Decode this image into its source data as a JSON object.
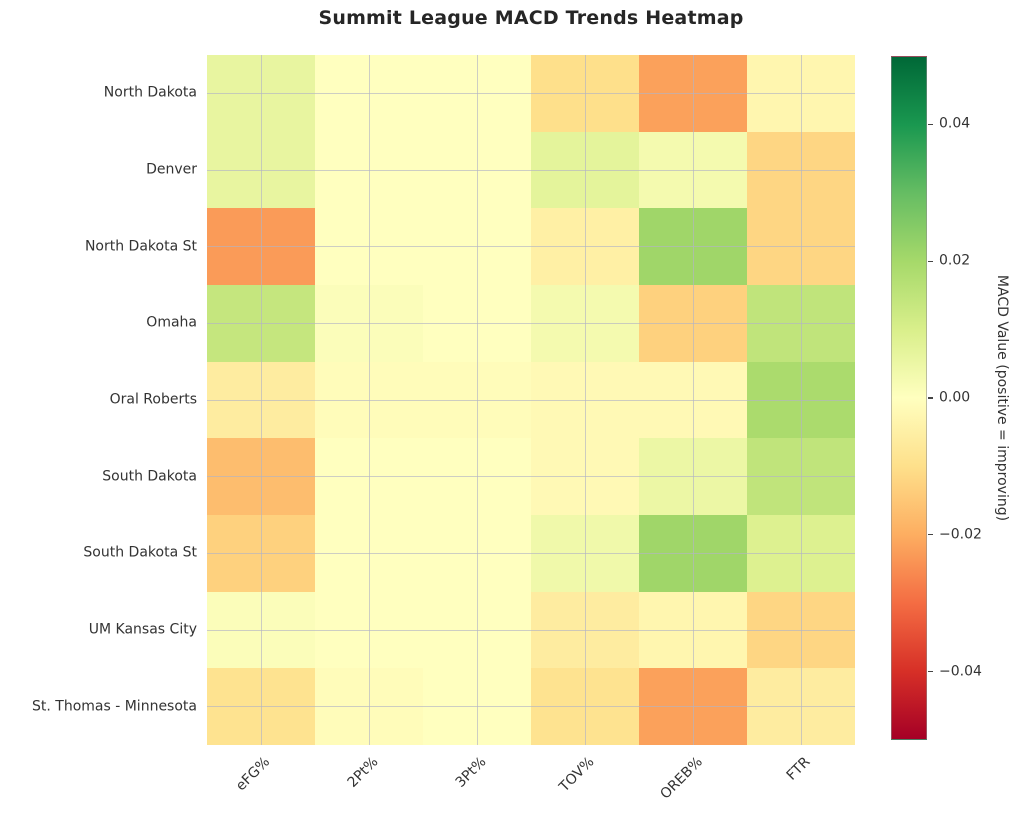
{
  "title": "Summit League MACD Trends Heatmap",
  "chart_data": {
    "type": "heatmap",
    "title": "Summit League MACD Trends Heatmap",
    "rows": [
      "North Dakota",
      "Denver",
      "North Dakota St",
      "Omaha",
      "Oral Roberts",
      "South Dakota",
      "South Dakota St",
      "UM Kansas City",
      "St. Thomas - Minnesota"
    ],
    "columns": [
      "eFG%",
      "2Pt%",
      "3Pt%",
      "TOV%",
      "OREB%",
      "FTR"
    ],
    "values": [
      [
        0.006,
        0.0,
        0.0,
        -0.01,
        -0.022,
        -0.003
      ],
      [
        0.006,
        0.0,
        0.0,
        0.007,
        0.003,
        -0.012
      ],
      [
        -0.023,
        0.0,
        0.0,
        -0.005,
        0.021,
        -0.012
      ],
      [
        0.014,
        0.001,
        0.0,
        0.003,
        -0.013,
        0.015
      ],
      [
        -0.006,
        -0.001,
        -0.001,
        -0.002,
        -0.002,
        0.019
      ],
      [
        -0.017,
        0.0,
        0.0,
        -0.002,
        0.005,
        0.015
      ],
      [
        -0.013,
        0.0,
        0.0,
        0.004,
        0.021,
        0.009
      ],
      [
        0.001,
        0.0,
        0.0,
        -0.006,
        -0.003,
        -0.012
      ],
      [
        -0.009,
        -0.001,
        0.0,
        -0.009,
        -0.022,
        -0.006
      ]
    ],
    "colormap": "RdYlGn",
    "vmin": -0.05,
    "vmax": 0.05,
    "grid": true,
    "colorbar": {
      "label": "MACD Value (positive = improving)",
      "tick_labels": [
        "0.04",
        "0.02",
        "0.00",
        "−0.02",
        "−0.04"
      ],
      "tick_values": [
        0.04,
        0.02,
        0.0,
        -0.02,
        -0.04
      ],
      "position": "right"
    }
  }
}
